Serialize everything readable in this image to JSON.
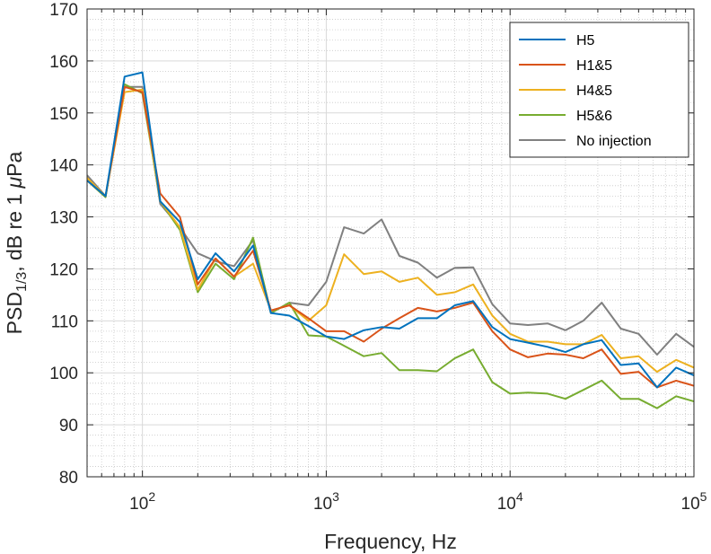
{
  "chart_data": {
    "type": "line",
    "xscale": "log",
    "xlim": [
      50,
      100000
    ],
    "ylim": [
      80,
      170
    ],
    "grid": true,
    "xlabel": "Frequency, Hz",
    "ylabel": "PSD1/3, dB re 1 μPa",
    "ylabel_parts": {
      "main": "PSD",
      "sub": "1/3",
      "rest": ", dB re 1 ",
      "mu": "μ",
      "unit": "Pa"
    },
    "legend_position": "top-right",
    "xticks": [
      {
        "value": 100,
        "base": "10",
        "exp": "2"
      },
      {
        "value": 1000,
        "base": "10",
        "exp": "3"
      },
      {
        "value": 10000,
        "base": "10",
        "exp": "4"
      },
      {
        "value": 100000,
        "base": "10",
        "exp": "5"
      }
    ],
    "yticks": [
      80,
      90,
      100,
      110,
      120,
      130,
      140,
      150,
      160,
      170
    ],
    "x": [
      50,
      63,
      80,
      100,
      125,
      160,
      200,
      250,
      315,
      400,
      500,
      630,
      800,
      1000,
      1250,
      1600,
      2000,
      2500,
      3150,
      4000,
      5000,
      6300,
      8000,
      10000,
      12500,
      16000,
      20000,
      25000,
      31500,
      40000,
      50000,
      63000,
      80000,
      100000
    ],
    "series": [
      {
        "name": "H5",
        "color": "#0072BD",
        "values": [
          137,
          134,
          157,
          157.8,
          133,
          129,
          118,
          123,
          119.5,
          124.5,
          111.5,
          111,
          109,
          107,
          106.5,
          108.2,
          108.8,
          108.5,
          110.5,
          110.5,
          113,
          113.8,
          108.8,
          106.5,
          105.8,
          105,
          104,
          105.5,
          106.3,
          101.5,
          101.8,
          97.2,
          101,
          99.5
        ]
      },
      {
        "name": "H1&5",
        "color": "#D95319",
        "values": [
          137,
          134,
          155,
          154,
          134.5,
          130,
          117,
          122,
          118.5,
          123.5,
          112,
          113,
          110.5,
          108,
          108,
          106,
          108.5,
          110.5,
          112.5,
          111.8,
          112.5,
          113.5,
          108,
          104.5,
          103,
          103.7,
          103.5,
          102.8,
          104.5,
          99.8,
          100.2,
          97.2,
          98.5,
          97.5
        ]
      },
      {
        "name": "H4&5",
        "color": "#EDB120",
        "values": [
          137.5,
          134,
          154,
          154.5,
          133,
          128,
          116,
          122,
          118.5,
          121,
          112,
          113,
          110,
          113,
          122.8,
          119,
          119.5,
          117.5,
          118.3,
          115,
          115.5,
          117,
          111,
          107.5,
          106,
          106,
          105.5,
          105.5,
          107.3,
          102.8,
          103.2,
          100.2,
          102.5,
          101
        ]
      },
      {
        "name": "H5&6",
        "color": "#77AC30",
        "values": [
          137,
          133.8,
          155.5,
          153.8,
          133,
          127.5,
          115.5,
          121,
          118,
          126,
          111.5,
          113.5,
          107.2,
          107,
          105.2,
          103.2,
          103.8,
          100.5,
          100.5,
          100.3,
          102.8,
          104.5,
          98.2,
          96,
          96.2,
          96,
          95,
          96.7,
          98.5,
          95,
          95,
          93.2,
          95.5,
          94.5
        ]
      },
      {
        "name": "No injection",
        "color": "#808080",
        "values": [
          138,
          134,
          155,
          155,
          132.5,
          128,
          123,
          121.5,
          120.5,
          125.5,
          111.5,
          113.5,
          113,
          117.5,
          128,
          126.8,
          129.5,
          122.5,
          121.2,
          118.3,
          120.2,
          120.3,
          113.2,
          109.5,
          109.2,
          109.5,
          108.2,
          110,
          113.5,
          108.5,
          107.5,
          103.5,
          107.5,
          105
        ]
      }
    ]
  }
}
